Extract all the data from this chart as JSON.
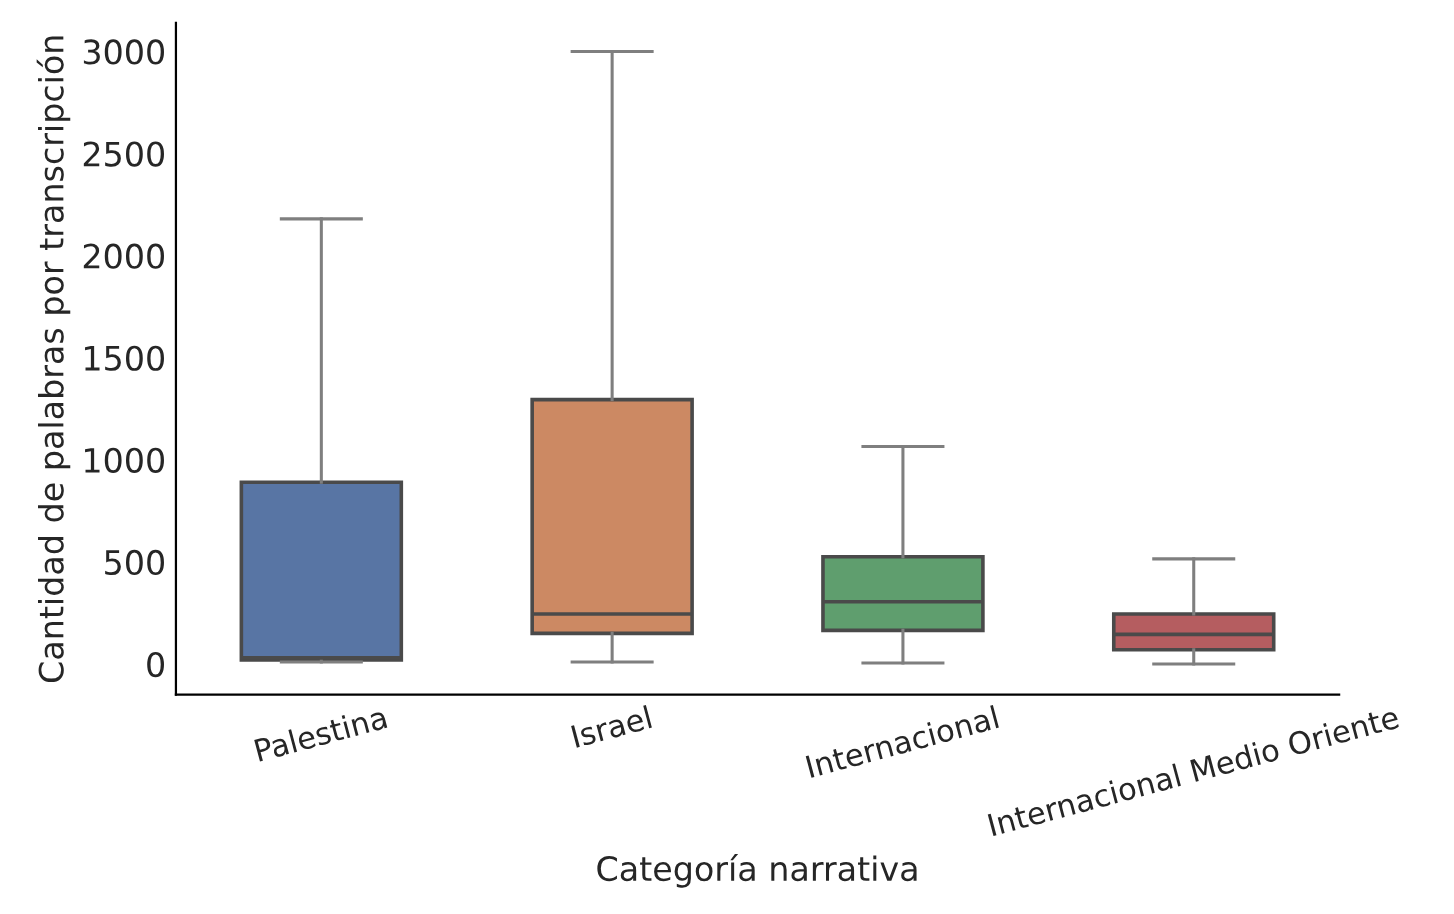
{
  "chart_data": {
    "type": "box",
    "xlabel": "Categoría narrativa",
    "ylabel": "Cantidad de palabras por transcripción",
    "categories": [
      "Palestina",
      "Israel",
      "Internacional",
      "Internacional Medio Oriente"
    ],
    "colors": [
      "#5875a4",
      "#cc8963",
      "#5f9e6e",
      "#b55d60"
    ],
    "boxes": [
      {
        "low": 10,
        "q1": 20,
        "median": 30,
        "q3": 890,
        "high": 2180
      },
      {
        "low": 10,
        "q1": 150,
        "median": 245,
        "q3": 1295,
        "high": 3000
      },
      {
        "low": 5,
        "q1": 165,
        "median": 305,
        "q3": 525,
        "high": 1065
      },
      {
        "low": 0,
        "q1": 70,
        "median": 145,
        "q3": 245,
        "high": 515
      }
    ],
    "ylim": [
      -150,
      3140
    ],
    "yticks": [
      0,
      500,
      1000,
      1500,
      2000,
      2500,
      3000
    ],
    "grid": false
  }
}
